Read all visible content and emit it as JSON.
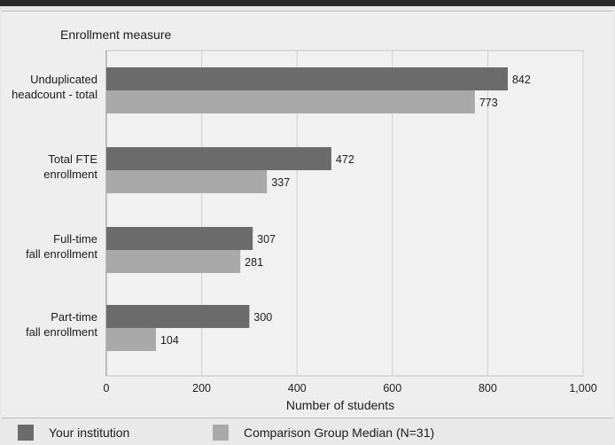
{
  "chart_data": {
    "type": "bar",
    "orientation": "horizontal",
    "category_axis_label": "Enrollment measure",
    "categories": [
      [
        "Unduplicated",
        "headcount - total"
      ],
      [
        "Total FTE",
        "enrollment"
      ],
      [
        "Full-time",
        "fall enrollment"
      ],
      [
        "Part-time",
        "fall enrollment"
      ]
    ],
    "series": [
      {
        "name": "Your institution",
        "values": [
          842,
          472,
          307,
          300
        ],
        "color": "#6b6b6b"
      },
      {
        "name": "Comparison Group Median (N=31)",
        "values": [
          773,
          337,
          281,
          104
        ],
        "color": "#a9a9a9"
      }
    ],
    "xlabel": "Number of students",
    "xlim": [
      0,
      1000
    ],
    "xticks": [
      0,
      200,
      400,
      600,
      800,
      1000
    ],
    "xtick_labels": [
      "0",
      "200",
      "400",
      "600",
      "800",
      "1,000"
    ],
    "grid": "vertical",
    "legend_position": "bottom"
  }
}
